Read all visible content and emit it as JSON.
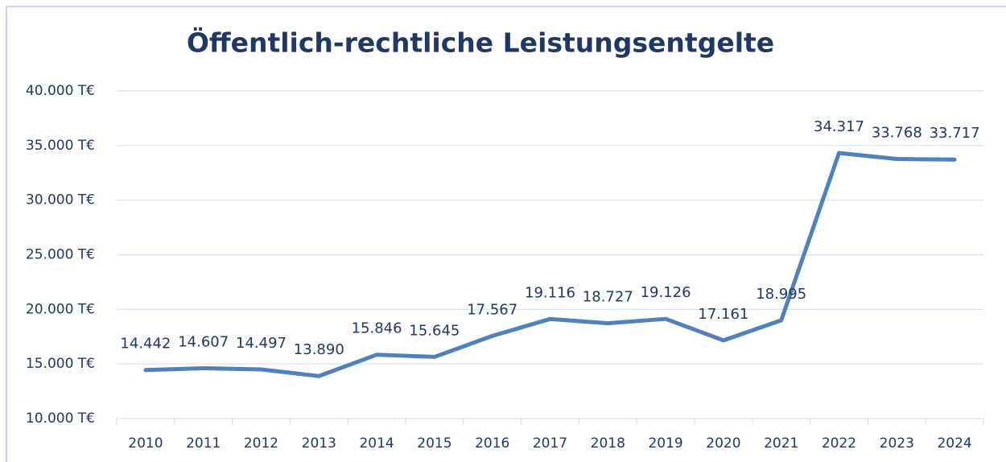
{
  "chart_data": {
    "type": "line",
    "title": "Öffentlich-rechtliche Leistungsentgelte",
    "categories": [
      "2010",
      "2011",
      "2012",
      "2013",
      "2014",
      "2015",
      "2016",
      "2017",
      "2018",
      "2019",
      "2020",
      "2021",
      "2022",
      "2023",
      "2024"
    ],
    "series": [
      {
        "name": "Öffentlich-rechtliche Leistungsentgelte",
        "color": "#4f81bd",
        "values": [
          14442,
          14607,
          14497,
          13890,
          15846,
          15645,
          17567,
          19116,
          18727,
          19126,
          17161,
          18995,
          34317,
          33768,
          33717
        ],
        "value_labels": [
          "14.442",
          "14.607",
          "14.497",
          "13.890",
          "15.846",
          "15.645",
          "17.567",
          "19.116",
          "18.727",
          "19.126",
          "17.161",
          "18.995",
          "34.317",
          "33.768",
          "33.717"
        ]
      }
    ],
    "ylim": [
      10000,
      40000
    ],
    "yticks": [
      {
        "value": 10000,
        "label": "10.000 T€"
      },
      {
        "value": 15000,
        "label": "15.000 T€"
      },
      {
        "value": 20000,
        "label": "20.000 T€"
      },
      {
        "value": 25000,
        "label": "25.000 T€"
      },
      {
        "value": 30000,
        "label": "30.000 T€"
      },
      {
        "value": 35000,
        "label": "35.000 T€"
      },
      {
        "value": 40000,
        "label": "40.000 T€"
      }
    ],
    "grid": true
  }
}
